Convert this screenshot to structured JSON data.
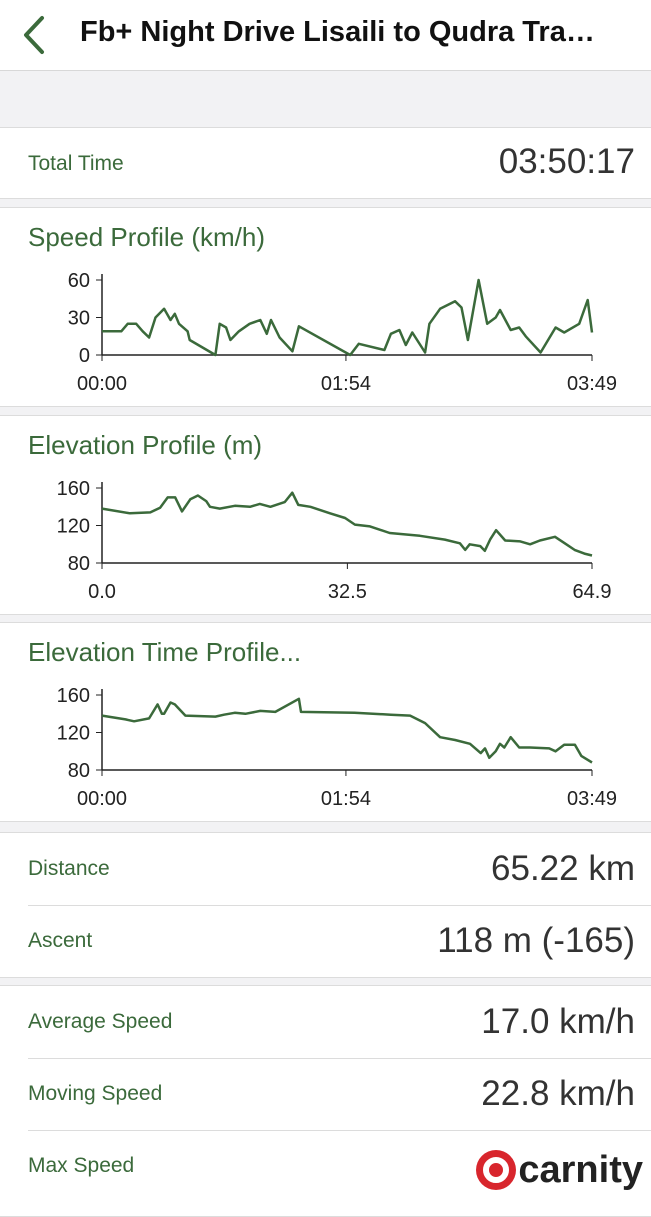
{
  "header": {
    "title": "Fb+ Night Drive Lisaili to Qudra Tra…"
  },
  "summary": {
    "label": "Total Time",
    "value": "03:50:17"
  },
  "chart_data": [
    {
      "type": "line",
      "title": "Speed Profile (km/h)",
      "color": "#3b6a3b",
      "x": [
        0,
        9,
        12,
        16,
        19,
        22,
        25,
        29,
        32,
        34,
        36,
        40,
        41,
        53,
        55,
        58,
        60,
        64,
        69,
        74,
        77,
        79,
        83,
        89,
        92,
        116,
        120,
        132,
        135,
        139,
        142,
        145,
        151,
        153,
        158,
        165,
        168,
        171,
        176,
        180,
        184,
        186,
        191,
        195,
        198,
        205,
        212,
        216,
        223,
        227,
        229
      ],
      "values": [
        19,
        19,
        25,
        25,
        19,
        14,
        30,
        37,
        28,
        33,
        25,
        19,
        12,
        0,
        25,
        22,
        12,
        19,
        25,
        28,
        17,
        28,
        14,
        3,
        23,
        0,
        9,
        4,
        17,
        20,
        8,
        18,
        2,
        25,
        37,
        43,
        38,
        12,
        60,
        25,
        30,
        36,
        20,
        22,
        15,
        2,
        22,
        18,
        25,
        44,
        18
      ],
      "xlim": [
        0,
        229
      ],
      "xticks": [
        {
          "value": 0,
          "label": "00:00"
        },
        {
          "value": 114,
          "label": "01:54"
        },
        {
          "value": 229,
          "label": "03:49"
        }
      ],
      "ylim": [
        0,
        60
      ],
      "yticks": [
        0,
        30,
        60
      ]
    },
    {
      "type": "line",
      "title": "Elevation Profile (m)",
      "color": "#3b6a3b",
      "x": [
        0,
        3.7,
        6.4,
        7.7,
        8.7,
        9.7,
        10.6,
        11.7,
        12.7,
        13.8,
        14.3,
        15.6,
        17.6,
        19.6,
        20.9,
        22.3,
        24.2,
        25.2,
        26.0,
        27.6,
        30.2,
        32.2,
        33.5,
        35.5,
        38.1,
        42.1,
        45.4,
        47.4,
        48.1,
        48.7,
        50.1,
        50.7,
        51.4,
        52.2,
        53.4,
        55.4,
        56.7,
        58.0,
        60.0,
        61.3,
        62.6,
        63.9,
        64.9
      ],
      "values": [
        138,
        133,
        134,
        139,
        150,
        150,
        135,
        148,
        152,
        146,
        140,
        138,
        141,
        140,
        143,
        140,
        145,
        155,
        142,
        140,
        133,
        128,
        121,
        119,
        112,
        109,
        105,
        101,
        94,
        100,
        98,
        93,
        105,
        115,
        104,
        103,
        100,
        104,
        108,
        101,
        94,
        90,
        88
      ],
      "xlim": [
        0,
        64.9
      ],
      "xticks": [
        {
          "value": 0,
          "label": "0.0"
        },
        32.5,
        64.9
      ],
      "ylim": [
        80,
        160
      ],
      "yticks": [
        80,
        120,
        160
      ]
    },
    {
      "type": "line",
      "title": "Elevation Time Profile...",
      "color": "#3b6a3b",
      "x": [
        0,
        11,
        15,
        22,
        26,
        28,
        29,
        32,
        34,
        39,
        53,
        57,
        62,
        67,
        74,
        81,
        92,
        93,
        118,
        135,
        144,
        151,
        158,
        165,
        172,
        177,
        179,
        181,
        184,
        186,
        188,
        191,
        195,
        200,
        209,
        212,
        216,
        221,
        224,
        229
      ],
      "values": [
        138,
        134,
        132,
        135,
        150,
        140,
        140,
        152,
        150,
        138,
        137,
        139,
        141,
        140,
        143,
        142,
        156,
        142,
        141,
        139,
        138,
        130,
        115,
        112,
        108,
        98,
        103,
        93,
        100,
        108,
        104,
        115,
        104,
        104,
        103,
        100,
        107,
        107,
        95,
        88
      ],
      "xlim": [
        0,
        229
      ],
      "xticks": [
        {
          "value": 0,
          "label": "00:00"
        },
        {
          "value": 114,
          "label": "01:54"
        },
        {
          "value": 229,
          "label": "03:49"
        }
      ],
      "ylim": [
        80,
        160
      ],
      "yticks": [
        80,
        120,
        160
      ]
    }
  ],
  "stats": [
    [
      {
        "label": "Distance",
        "value": "65.22 km"
      },
      {
        "label": "Ascent",
        "value": "118 m (-165)"
      }
    ],
    [
      {
        "label": "Average Speed",
        "value": "17.0 km/h"
      },
      {
        "label": "Moving Speed",
        "value": "22.8 km/h"
      },
      {
        "label": "Max Speed"
      }
    ]
  ],
  "watermark": "carnity"
}
